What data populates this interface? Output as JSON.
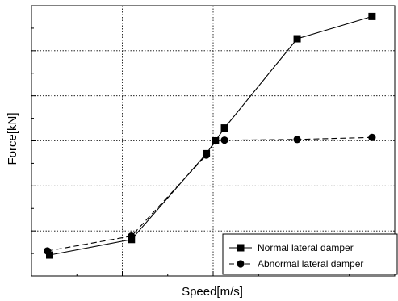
{
  "chart_data": {
    "type": "line",
    "title": "",
    "xlabel": "Speed[m/s]",
    "ylabel": "Force[kN]",
    "x_tick_labels_shown": false,
    "y_tick_labels_shown": false,
    "grid": true,
    "grid_style": "dotted",
    "legend_position": "bottom-right",
    "xlim": [
      -0.4,
      0.4
    ],
    "ylim": [
      -1.0,
      1.0
    ],
    "series": [
      {
        "name": "Normal lateral damper",
        "line_style": "solid",
        "marker": "square",
        "color": "#000000",
        "x": [
          -0.36,
          -0.18,
          -0.015,
          0.005,
          0.025,
          0.185,
          0.35
        ],
        "y": [
          -0.845,
          -0.73,
          -0.095,
          0.0,
          0.095,
          0.755,
          0.92
        ]
      },
      {
        "name": "Abnormal lateral damper",
        "line_style": "dashed",
        "marker": "circle",
        "color": "#000000",
        "x": [
          -0.365,
          -0.18,
          -0.015,
          0.005,
          0.025,
          0.185,
          0.35
        ],
        "y": [
          -0.815,
          -0.705,
          -0.105,
          0.0,
          0.005,
          0.01,
          0.025
        ]
      }
    ]
  }
}
